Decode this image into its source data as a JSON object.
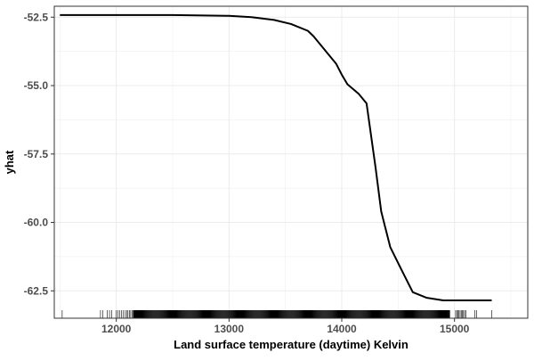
{
  "chart_data": {
    "type": "line",
    "title": "",
    "xlabel": "Land surface temperature (daytime) Kelvin",
    "ylabel": "yhat",
    "xlim": [
      11450,
      15650
    ],
    "ylim": [
      -63.5,
      -52.1
    ],
    "xticks": [
      12000,
      13000,
      14000,
      15000
    ],
    "xtick_labels": [
      "12000",
      "13000",
      "14000",
      "15000"
    ],
    "yticks": [
      -52.5,
      -55.0,
      -57.5,
      -60.0,
      -62.5
    ],
    "ytick_labels": [
      "-52.5",
      "-55.0",
      "-57.5",
      "-60.0",
      "-62.5"
    ],
    "grid": true,
    "legend": "none",
    "colors": {
      "line": "#000000",
      "grid": "#ebebeb",
      "border": "#333333",
      "background": "#ffffff"
    },
    "series": [
      {
        "x": [
          11500,
          12000,
          12500,
          13000,
          13200,
          13400,
          13550,
          13700,
          13750,
          13850,
          13950,
          14000,
          14050,
          14150,
          14220,
          14300,
          14350,
          14430,
          14520,
          14630,
          14750,
          14900,
          15000,
          15100,
          15200,
          15330
        ],
        "y": [
          -52.42,
          -52.42,
          -52.42,
          -52.45,
          -52.5,
          -52.6,
          -52.75,
          -53.0,
          -53.2,
          -53.7,
          -54.2,
          -54.6,
          -54.95,
          -55.3,
          -55.65,
          -58.0,
          -59.6,
          -60.9,
          -61.65,
          -62.55,
          -62.75,
          -62.85,
          -62.85,
          -62.85,
          -62.85,
          -62.85
        ]
      }
    ],
    "rug": {
      "ranges": [
        {
          "from": 11520,
          "to": 11520,
          "step": 1
        },
        {
          "from": 11860,
          "to": 11880,
          "step": 20
        },
        {
          "from": 11920,
          "to": 11960,
          "step": 20
        },
        {
          "from": 12000,
          "to": 12060,
          "step": 15
        },
        {
          "from": 12080,
          "to": 12150,
          "step": 12
        },
        {
          "from": 12150,
          "to": 14960,
          "step": 4
        },
        {
          "from": 15010,
          "to": 15100,
          "step": 10
        },
        {
          "from": 15180,
          "to": 15195,
          "step": 15
        },
        {
          "from": 15330,
          "to": 15330,
          "step": 1
        }
      ]
    }
  }
}
